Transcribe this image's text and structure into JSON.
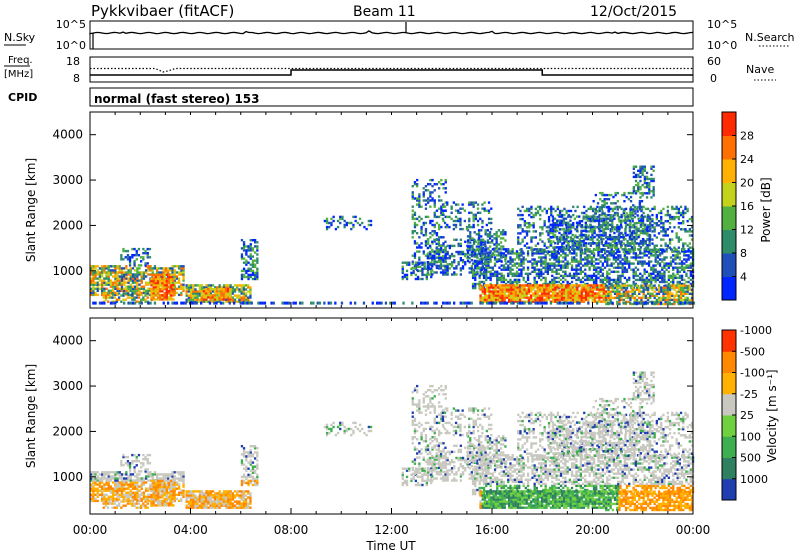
{
  "header": {
    "station": "Pykkvibaer (fitACF)",
    "beam": "Beam 11",
    "date": "12/Oct/2015"
  },
  "noise_panel": {
    "left_label": "N.Sky",
    "right_label": "N.Search",
    "left_ticks": [
      "10^5",
      "10^0"
    ],
    "right_ticks": [
      "10^5",
      "10^0"
    ]
  },
  "freq_panel": {
    "left_label_1": "Freq.",
    "left_label_2": "[MHz]",
    "right_label": "Nave",
    "left_ticks": [
      "18",
      "8"
    ],
    "right_ticks": [
      "60",
      "0"
    ]
  },
  "cpid": {
    "label": "CPID",
    "text": "normal (fast stereo) 153"
  },
  "x_axis": {
    "label": "Time UT",
    "ticks": [
      "00:00",
      "04:00",
      "08:00",
      "12:00",
      "16:00",
      "20:00",
      "00:00"
    ]
  },
  "chart_data": [
    {
      "type": "heatmap",
      "name": "power",
      "ylabel": "Slant Range [km]",
      "ylim": [
        180,
        4500
      ],
      "yticks": [
        "1000",
        "2000",
        "3000",
        "4000"
      ],
      "colorbar": {
        "label": "Power [dB]",
        "ticks": [
          "4",
          "8",
          "12",
          "16",
          "20",
          "24",
          "28"
        ],
        "colors": [
          "#0026ff",
          "#1f4fb8",
          "#2f8c6a",
          "#52b040",
          "#c4d21c",
          "#ffb000",
          "#ff7000",
          "#ff2a00"
        ]
      }
    },
    {
      "type": "heatmap",
      "name": "velocity",
      "ylabel": "Slant Range [km]",
      "ylim": [
        180,
        4500
      ],
      "yticks": [
        "1000",
        "2000",
        "3000",
        "4000"
      ],
      "colorbar": {
        "label": "Velocity [m s⁻¹]",
        "ticks": [
          "1000",
          "500",
          "100",
          "25",
          "-25",
          "-100",
          "-500",
          "-1000"
        ],
        "colors": [
          "#1f3fb0",
          "#2e8060",
          "#3fae50",
          "#6fd040",
          "#c8c8c0",
          "#ffb000",
          "#ff8800",
          "#ff3300"
        ]
      }
    }
  ]
}
